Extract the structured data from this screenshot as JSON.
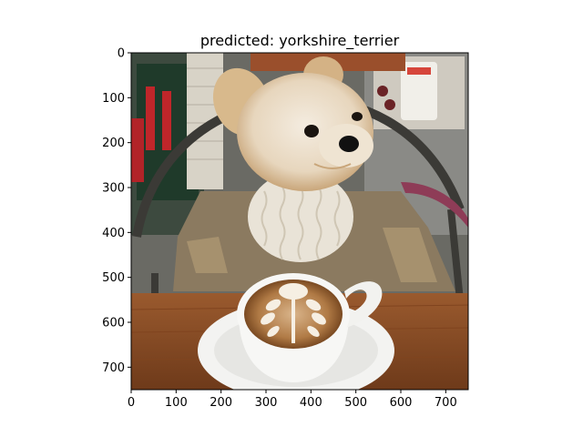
{
  "figure": {
    "title": "predicted: yorkshire_terrier",
    "x_ticks": [
      "0",
      "100",
      "200",
      "300",
      "400",
      "500",
      "600",
      "700"
    ],
    "y_ticks": [
      "0",
      "100",
      "200",
      "300",
      "400",
      "500",
      "600",
      "700"
    ],
    "x_tick_values": [
      0,
      100,
      200,
      300,
      400,
      500,
      600,
      700
    ],
    "y_tick_values": [
      0,
      100,
      200,
      300,
      400,
      500,
      600,
      700
    ],
    "x_range": [
      0,
      750
    ],
    "y_range": [
      0,
      750
    ],
    "image_subject": "yorkshire-terrier-with-latte"
  }
}
